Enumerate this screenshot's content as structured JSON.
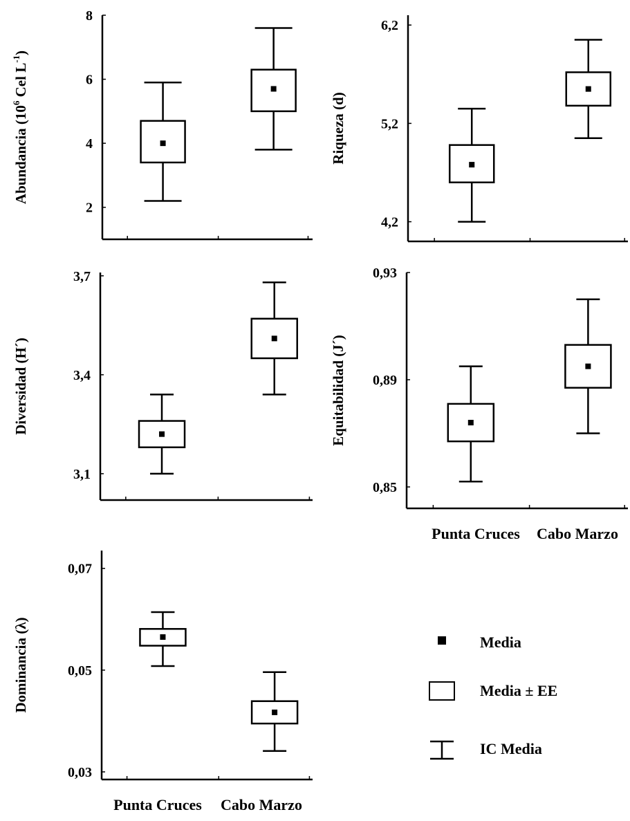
{
  "chart_data": [
    {
      "type": "box",
      "ylabel": "Abundancia (10^6 Cel L^-1)",
      "ylabel_parts": {
        "base": "Abundancia (10",
        "sup1": "6",
        "mid": " Cel L",
        "sup2": "-1",
        "end": ")"
      },
      "yticks": [
        "8",
        "6",
        "4",
        "2"
      ],
      "ytick_values": [
        8,
        6,
        4,
        2
      ],
      "ylim": [
        1.0,
        8.0
      ],
      "categories": [
        "Punta Cruces",
        "Cabo Marzo"
      ],
      "show_xlabels": false,
      "stats": [
        {
          "category": "Punta Cruces",
          "mean": 4.0,
          "se_low": 3.4,
          "se_high": 4.7,
          "ci_low": 2.2,
          "ci_high": 5.9
        },
        {
          "category": "Cabo Marzo",
          "mean": 5.7,
          "se_low": 5.0,
          "se_high": 6.3,
          "ci_low": 3.8,
          "ci_high": 7.6
        }
      ]
    },
    {
      "type": "box",
      "ylabel": "Riqueza (d)",
      "yticks": [
        "6,2",
        "5,2",
        "4,2"
      ],
      "ytick_values": [
        6.2,
        5.2,
        4.2
      ],
      "ylim": [
        4.0,
        6.3
      ],
      "categories": [
        "Punta Cruces",
        "Cabo Marzo"
      ],
      "show_xlabels": false,
      "stats": [
        {
          "category": "Punta Cruces",
          "mean": 4.78,
          "se_low": 4.6,
          "se_high": 4.98,
          "ci_low": 4.2,
          "ci_high": 5.35
        },
        {
          "category": "Cabo Marzo",
          "mean": 5.55,
          "se_low": 5.38,
          "se_high": 5.72,
          "ci_low": 5.05,
          "ci_high": 6.05
        }
      ]
    },
    {
      "type": "box",
      "ylabel": "Diversidad (H´)",
      "yticks": [
        "3,7",
        "3,4",
        "3,1"
      ],
      "ytick_values": [
        3.7,
        3.4,
        3.1
      ],
      "ylim": [
        3.02,
        3.71
      ],
      "categories": [
        "Punta Cruces",
        "Cabo Marzo"
      ],
      "show_xlabels": false,
      "stats": [
        {
          "category": "Punta Cruces",
          "mean": 3.22,
          "se_low": 3.18,
          "se_high": 3.26,
          "ci_low": 3.1,
          "ci_high": 3.34
        },
        {
          "category": "Cabo Marzo",
          "mean": 3.51,
          "se_low": 3.45,
          "se_high": 3.57,
          "ci_low": 3.34,
          "ci_high": 3.68
        }
      ]
    },
    {
      "type": "box",
      "ylabel": "Equitabilidad (J´)",
      "yticks": [
        "0,93",
        "0,89",
        "0,85"
      ],
      "ytick_values": [
        0.93,
        0.89,
        0.85
      ],
      "ylim": [
        0.842,
        0.93
      ],
      "categories": [
        "Punta Cruces",
        "Cabo Marzo"
      ],
      "show_xlabels": true,
      "stats": [
        {
          "category": "Punta Cruces",
          "mean": 0.874,
          "se_low": 0.867,
          "se_high": 0.881,
          "ci_low": 0.852,
          "ci_high": 0.895
        },
        {
          "category": "Cabo Marzo",
          "mean": 0.895,
          "se_low": 0.887,
          "se_high": 0.903,
          "ci_low": 0.87,
          "ci_high": 0.92
        }
      ]
    },
    {
      "type": "box",
      "ylabel": "Dominancia (λ)",
      "yticks": [
        "0,07",
        "0,05",
        "0,03"
      ],
      "ytick_values": [
        0.07,
        0.05,
        0.03
      ],
      "ylim": [
        0.0285,
        0.0735
      ],
      "categories": [
        "Punta Cruces",
        "Cabo Marzo"
      ],
      "show_xlabels": true,
      "stats": [
        {
          "category": "Punta Cruces",
          "mean": 0.0565,
          "se_low": 0.0548,
          "se_high": 0.0581,
          "ci_low": 0.0508,
          "ci_high": 0.0614
        },
        {
          "category": "Cabo Marzo",
          "mean": 0.0417,
          "se_low": 0.0395,
          "se_high": 0.0439,
          "ci_low": 0.0341,
          "ci_high": 0.0496
        }
      ]
    }
  ],
  "legend": {
    "items": [
      {
        "marker": "mean",
        "label": "Media"
      },
      {
        "marker": "box",
        "label": "Media ± EE"
      },
      {
        "marker": "whisker",
        "label": "IC Media"
      }
    ]
  }
}
